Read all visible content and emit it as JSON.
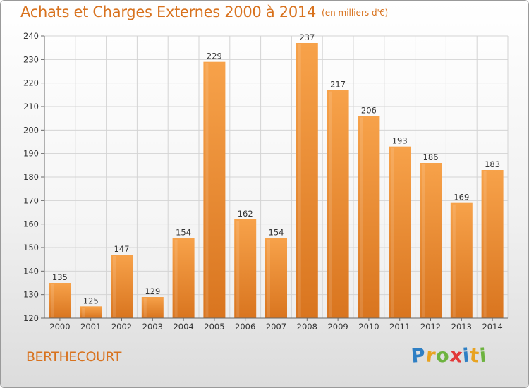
{
  "header": {
    "title": "Achats et Charges Externes 2000 à 2014",
    "unit": "(en milliers d'€)"
  },
  "footer": {
    "commune": "BERTHECOURT",
    "logo": {
      "letters": [
        "P",
        "r",
        "o",
        "x",
        "i",
        "t",
        "i"
      ],
      "colors": [
        "#2e7fc4",
        "#e8a321",
        "#6db33f",
        "#e23a3a",
        "#2e7fc4",
        "#e8a321",
        "#6db33f"
      ]
    }
  },
  "colors": {
    "bar": "#f0953a",
    "bar_light": "#f7b060",
    "bar_dark": "#d9751f",
    "title": "#d8721e",
    "grid": "#d4d4d4",
    "axis_text": "#333333"
  },
  "chart_data": {
    "type": "bar",
    "title": "Achats et Charges Externes 2000 à 2014",
    "subtitle": "(en milliers d'€)",
    "xlabel": "",
    "ylabel": "",
    "categories": [
      "2000",
      "2001",
      "2002",
      "2003",
      "2004",
      "2005",
      "2006",
      "2007",
      "2008",
      "2009",
      "2010",
      "2011",
      "2012",
      "2013",
      "2014"
    ],
    "values": [
      135,
      125,
      147,
      129,
      154,
      229,
      162,
      154,
      237,
      217,
      206,
      193,
      186,
      169,
      183
    ],
    "ylim": [
      120,
      240
    ],
    "yticks": [
      120,
      130,
      140,
      150,
      160,
      170,
      180,
      190,
      200,
      210,
      220,
      230,
      240
    ],
    "grid": true,
    "data_labels": true
  }
}
